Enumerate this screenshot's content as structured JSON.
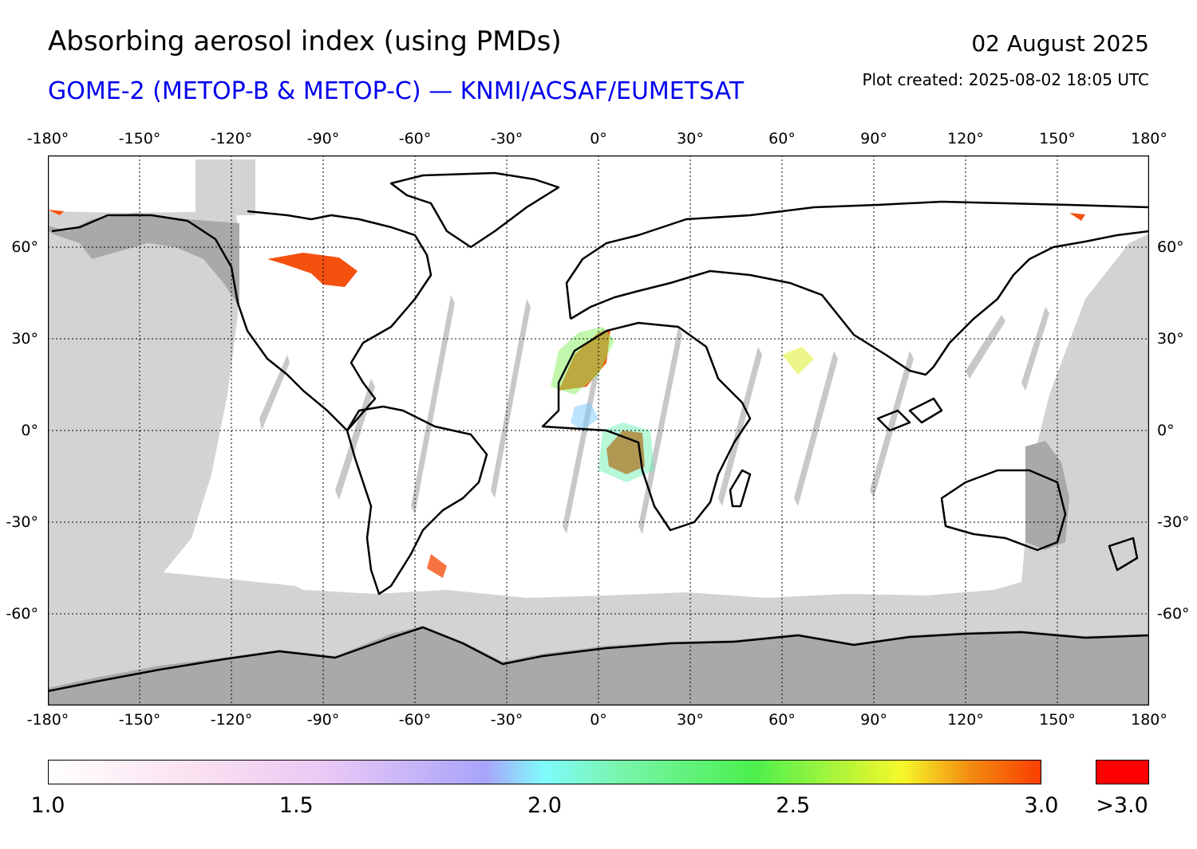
{
  "header": {
    "title": "Absorbing aerosol index (using PMDs)",
    "subtitle": "GOME-2 (METOP-B & METOP-C) — KNMI/ACSAF/EUMETSAT",
    "date": "02 August 2025",
    "created": "Plot created: 2025-08-02 18:05 UTC"
  },
  "map": {
    "projection": "equirectangular",
    "lon_range": [
      -180,
      180
    ],
    "lat_range": [
      -90,
      90
    ],
    "lon_ticks": [
      {
        "value": -180,
        "label": "-180°"
      },
      {
        "value": -150,
        "label": "-150°"
      },
      {
        "value": -120,
        "label": "-120°"
      },
      {
        "value": -90,
        "label": "-90°"
      },
      {
        "value": -60,
        "label": "-60°"
      },
      {
        "value": -30,
        "label": "-30°"
      },
      {
        "value": 0,
        "label": "0°"
      },
      {
        "value": 30,
        "label": "30°"
      },
      {
        "value": 60,
        "label": "60°"
      },
      {
        "value": 90,
        "label": "90°"
      },
      {
        "value": 120,
        "label": "120°"
      },
      {
        "value": 150,
        "label": "150°"
      },
      {
        "value": 180,
        "label": "180°"
      }
    ],
    "lat_ticks": [
      {
        "value": 60,
        "label": "60°"
      },
      {
        "value": 30,
        "label": "30°"
      },
      {
        "value": 0,
        "label": "0°"
      },
      {
        "value": -30,
        "label": "-30°"
      },
      {
        "value": -60,
        "label": "-60°"
      }
    ],
    "colors": {
      "no_data": "#d3d3d3",
      "land_no_data": "#a9a9a9",
      "coast": "#000000",
      "grid": "#000000"
    }
  },
  "colorbar": {
    "min": 1.0,
    "max": 3.0,
    "labels": [
      {
        "value": 1.0,
        "label": "1.0"
      },
      {
        "value": 1.5,
        "label": "1.5"
      },
      {
        "value": 2.0,
        "label": "2.0"
      },
      {
        "value": 2.5,
        "label": "2.5"
      },
      {
        "value": 3.0,
        "label": "3.0"
      }
    ],
    "overflow_label": ">3.0",
    "overflow_color": "#ff0000"
  }
}
